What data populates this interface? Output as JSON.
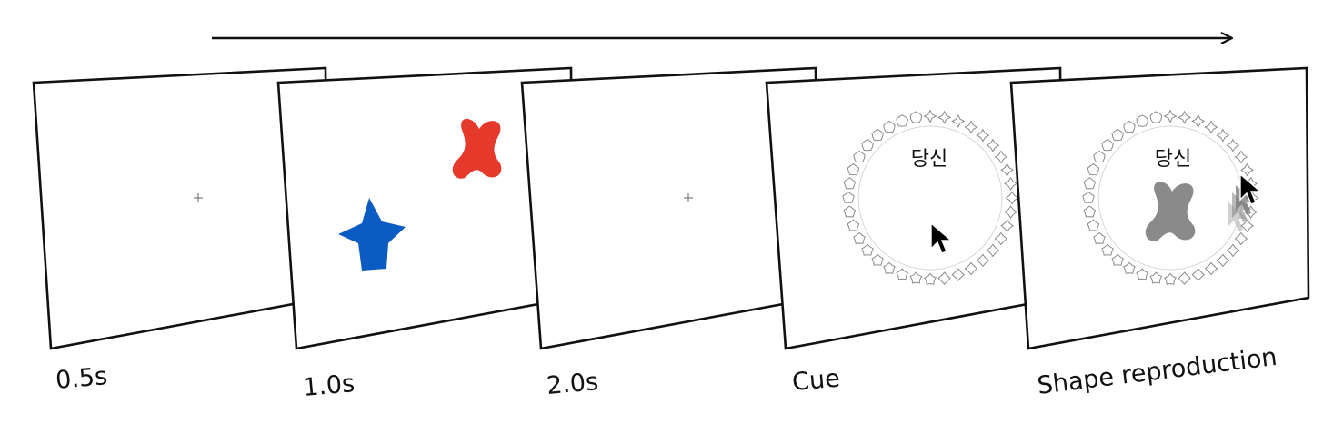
{
  "panels": [
    {
      "id": "fixation",
      "label": "0.5s",
      "content": "fixation"
    },
    {
      "id": "memory",
      "label": "1.0s",
      "content": "memory-array"
    },
    {
      "id": "delay",
      "label": "2.0s",
      "content": "fixation"
    },
    {
      "id": "cue",
      "label": "Cue",
      "content": "cue",
      "cue_word": "당신"
    },
    {
      "id": "reproduction",
      "label": "Shape reproduction",
      "content": "reproduction",
      "cue_word": "당신"
    }
  ],
  "colors": {
    "red_shape": "#e5392b",
    "blue_shape": "#0a5cc2",
    "reproduced_shape": "#8a8a8a",
    "frame_stroke": "#111111",
    "arrow": "#111111"
  },
  "ring": {
    "item_count": 36
  },
  "icons": [
    "time-arrow",
    "fixation-cross-icon",
    "x-shape-icon",
    "star-shape-icon",
    "mouse-cursor-icon",
    "shape-ring"
  ]
}
